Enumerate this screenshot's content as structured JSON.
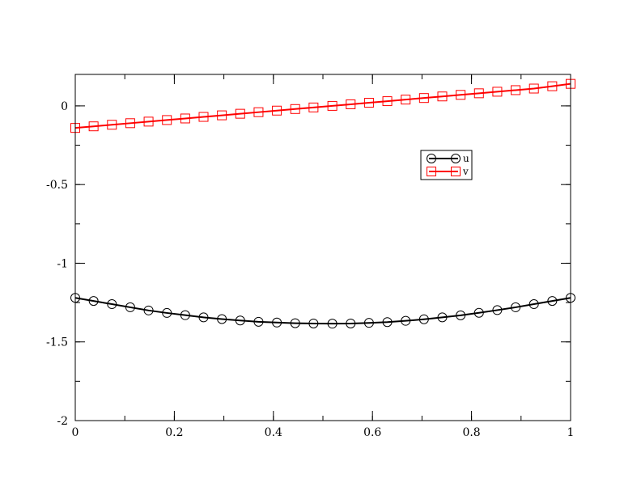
{
  "chart_data": {
    "type": "line",
    "title": "",
    "xlabel": "",
    "ylabel": "",
    "xlim": [
      0,
      1
    ],
    "ylim": [
      -2,
      0.2
    ],
    "grid": false,
    "legend_position": "upper-right-inside",
    "x_ticks": [
      {
        "value": 0,
        "label": "0"
      },
      {
        "value": 0.2,
        "label": "0.2"
      },
      {
        "value": 0.4,
        "label": "0.4"
      },
      {
        "value": 0.6,
        "label": "0.6"
      },
      {
        "value": 0.8,
        "label": "0.8"
      },
      {
        "value": 1,
        "label": "1"
      }
    ],
    "y_ticks": [
      {
        "value": 0,
        "label": "0"
      },
      {
        "value": -0.5,
        "label": "-0.5"
      },
      {
        "value": -1,
        "label": "-1"
      },
      {
        "value": -1.5,
        "label": "-1.5"
      },
      {
        "value": -2,
        "label": "-2"
      }
    ],
    "x_minor_step": 0.1,
    "y_minor_step": 0.25,
    "x": [
      0,
      0.037,
      0.074,
      0.111,
      0.148,
      0.185,
      0.222,
      0.259,
      0.296,
      0.333,
      0.37,
      0.407,
      0.444,
      0.481,
      0.519,
      0.556,
      0.593,
      0.63,
      0.667,
      0.704,
      0.741,
      0.778,
      0.815,
      0.852,
      0.889,
      0.926,
      0.963,
      1.0
    ],
    "series": [
      {
        "name": "u",
        "color": "#000000",
        "marker": "circle",
        "values": [
          -1.22,
          -1.24,
          -1.26,
          -1.28,
          -1.3,
          -1.316,
          -1.33,
          -1.344,
          -1.355,
          -1.364,
          -1.372,
          -1.377,
          -1.381,
          -1.383,
          -1.384,
          -1.383,
          -1.379,
          -1.374,
          -1.366,
          -1.356,
          -1.344,
          -1.331,
          -1.315,
          -1.298,
          -1.28,
          -1.26,
          -1.24,
          -1.22
        ]
      },
      {
        "name": "v",
        "color": "#ff0000",
        "marker": "square",
        "values": [
          -0.14,
          -0.13,
          -0.12,
          -0.11,
          -0.1,
          -0.09,
          -0.08,
          -0.07,
          -0.06,
          -0.05,
          -0.04,
          -0.03,
          -0.02,
          -0.01,
          0.0,
          0.01,
          0.02,
          0.03,
          0.04,
          0.05,
          0.06,
          0.07,
          0.08,
          0.09,
          0.1,
          0.11,
          0.125,
          0.14
        ]
      }
    ]
  }
}
